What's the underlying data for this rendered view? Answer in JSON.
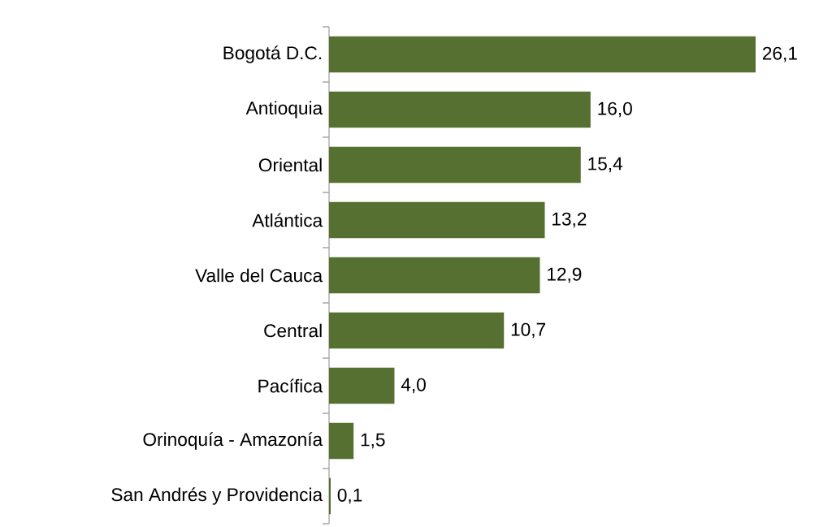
{
  "chart_data": {
    "type": "bar",
    "orientation": "horizontal",
    "categories": [
      "Bogotá D.C.",
      "Antioquia",
      "Oriental",
      "Atlántica",
      "Valle del Cauca",
      "Central",
      "Pacífica",
      "Orinoquía - Amazonía",
      "San Andrés y Providencia"
    ],
    "values": [
      26.1,
      16.0,
      15.4,
      13.2,
      12.9,
      10.7,
      4.0,
      1.5,
      0.1
    ],
    "value_labels": [
      "26,1",
      "16,0",
      "15,4",
      "13,2",
      "12,9",
      "10,7",
      "4,0",
      "1,5",
      "0,1"
    ],
    "color": "#557030"
  }
}
